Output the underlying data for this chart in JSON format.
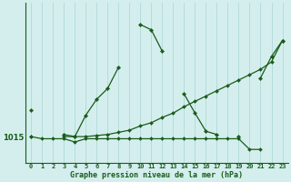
{
  "title": "Graphe pression niveau de la mer (hPa)",
  "background_color": "#d4eeee",
  "line_color": "#1a5c1a",
  "ytick_label": "1015",
  "ytick_value": 1015,
  "x_hours": [
    0,
    1,
    2,
    3,
    4,
    5,
    6,
    7,
    8,
    9,
    10,
    11,
    12,
    13,
    14,
    15,
    16,
    17,
    18,
    19,
    20,
    21,
    22,
    23
  ],
  "series_main": [
    1017.5,
    null,
    null,
    1015.2,
    1015.0,
    1017.0,
    1018.5,
    1019.5,
    1021.5,
    null,
    1025.5,
    1025.0,
    1023.0,
    null,
    1019.0,
    1017.2,
    1015.5,
    1015.2,
    null,
    1015.0,
    null,
    1020.5,
    1022.5,
    1024.0
  ],
  "series_flat": [
    1015.0,
    1014.8,
    1014.8,
    1014.8,
    1014.5,
    1014.8,
    1014.8,
    1014.8,
    1014.8,
    1014.8,
    1014.8,
    1014.8,
    1014.8,
    1014.8,
    1014.8,
    1014.8,
    1014.8,
    1014.8,
    1014.8,
    1014.8,
    1013.8,
    1013.8,
    null,
    null
  ],
  "series_rising": [
    1015.0,
    null,
    null,
    1015.0,
    1015.0,
    1015.0,
    1015.1,
    1015.2,
    1015.4,
    1015.6,
    1016.0,
    1016.3,
    1016.8,
    1017.2,
    1017.8,
    1018.3,
    1018.8,
    1019.3,
    1019.8,
    1020.3,
    1020.8,
    1021.3,
    1022.0,
    1024.0
  ],
  "ylim_min": 1012.5,
  "ylim_max": 1027.5
}
